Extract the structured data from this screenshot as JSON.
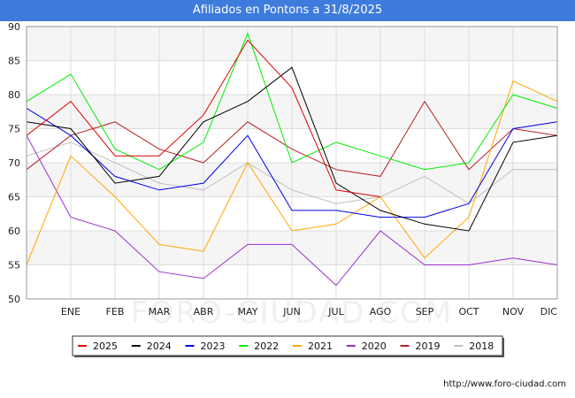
{
  "title": "Afiliados en Pontons a 31/8/2025",
  "watermark": "FORO-CIUDAD.COM",
  "url": "http://www.foro-ciudad.com",
  "chart_data": {
    "type": "line",
    "categories": [
      "",
      "ENE",
      "FEB",
      "MAR",
      "ABR",
      "MAY",
      "JUN",
      "JUL",
      "AGO",
      "SEP",
      "OCT",
      "NOV",
      "DIC"
    ],
    "ylim": [
      50,
      90
    ],
    "yticks": [
      50,
      55,
      60,
      65,
      70,
      75,
      80,
      85,
      90
    ],
    "grid": true,
    "legend_position": "bottom",
    "series": [
      {
        "name": "2025",
        "color": "#dd0000",
        "values": [
          74,
          79,
          71,
          71,
          77,
          88,
          81,
          66,
          65,
          null,
          null,
          null,
          null
        ]
      },
      {
        "name": "2024",
        "color": "#000000",
        "values": [
          76,
          75,
          67,
          68,
          76,
          79,
          84,
          67,
          63,
          61,
          60,
          73,
          74
        ]
      },
      {
        "name": "2023",
        "color": "#0000ee",
        "values": [
          78,
          74,
          68,
          66,
          67,
          74,
          63,
          63,
          62,
          62,
          64,
          75,
          76
        ]
      },
      {
        "name": "2022",
        "color": "#00ee00",
        "values": [
          79,
          83,
          72,
          69,
          73,
          89,
          70,
          73,
          71,
          69,
          70,
          80,
          78
        ]
      },
      {
        "name": "2021",
        "color": "#ffa500",
        "values": [
          55,
          71,
          65,
          58,
          57,
          70,
          60,
          61,
          65,
          56,
          62,
          82,
          79
        ]
      },
      {
        "name": "2020",
        "color": "#9932cc",
        "values": [
          74,
          62,
          60,
          54,
          53,
          58,
          58,
          52,
          60,
          55,
          55,
          56,
          55
        ]
      },
      {
        "name": "2019",
        "color": "#b22222",
        "values": [
          69,
          74,
          76,
          72,
          70,
          76,
          72,
          69,
          68,
          79,
          69,
          75,
          74
        ]
      },
      {
        "name": "2018",
        "color": "#c0c0c0",
        "values": [
          71,
          73,
          70,
          67,
          66,
          70,
          66,
          64,
          65,
          68,
          64,
          69,
          69
        ]
      }
    ]
  }
}
